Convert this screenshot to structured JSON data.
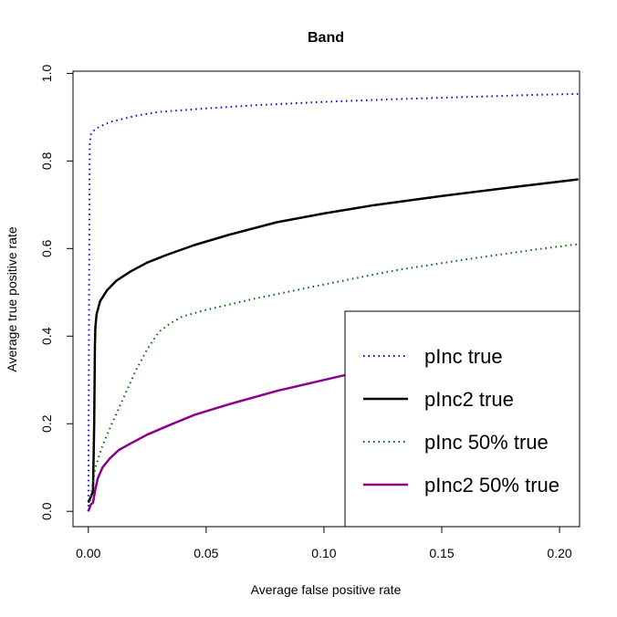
{
  "chart_data": {
    "type": "line",
    "title": "Band",
    "xlabel": "Average false positive rate",
    "ylabel": "Average true positive rate",
    "xlim": [
      -0.0065,
      0.2085
    ],
    "ylim": [
      -0.035,
      1.005
    ],
    "xticks": [
      0.0,
      0.05,
      0.1,
      0.15,
      0.2
    ],
    "xtick_labels": [
      "0.00",
      "0.05",
      "0.10",
      "0.15",
      "0.20"
    ],
    "yticks": [
      0.0,
      0.2,
      0.4,
      0.6,
      0.8,
      1.0
    ],
    "ytick_labels": [
      "0.0",
      "0.2",
      "0.4",
      "0.6",
      "0.8",
      "1.0"
    ],
    "grid": false,
    "legend_position": "bottom-right",
    "series": [
      {
        "name": "pInc true",
        "color": "#0000ff",
        "dash": "dotted",
        "x": [
          0.0,
          0.0003,
          0.0006,
          0.001,
          0.002,
          0.004,
          0.007,
          0.01,
          0.02,
          0.03,
          0.05,
          0.07,
          0.1,
          0.13,
          0.16,
          0.19,
          0.208
        ],
        "y": [
          0.0,
          0.5,
          0.84,
          0.86,
          0.868,
          0.876,
          0.884,
          0.89,
          0.903,
          0.912,
          0.92,
          0.927,
          0.935,
          0.941,
          0.946,
          0.951,
          0.953
        ]
      },
      {
        "name": "pInc2 true",
        "color": "#000000",
        "dash": "solid",
        "x": [
          0.0,
          0.002,
          0.0025,
          0.0028,
          0.003,
          0.0035,
          0.005,
          0.008,
          0.012,
          0.018,
          0.025,
          0.033,
          0.045,
          0.06,
          0.08,
          0.1,
          0.12,
          0.15,
          0.18,
          0.208
        ],
        "y": [
          0.02,
          0.045,
          0.2,
          0.38,
          0.42,
          0.45,
          0.48,
          0.505,
          0.527,
          0.548,
          0.568,
          0.585,
          0.608,
          0.632,
          0.66,
          0.68,
          0.698,
          0.72,
          0.74,
          0.758
        ]
      },
      {
        "name": "pInc 50% true",
        "color": "#006400",
        "dash": "dotted",
        "x": [
          0.0,
          0.003,
          0.006,
          0.01,
          0.015,
          0.02,
          0.025,
          0.03,
          0.035,
          0.04,
          0.05,
          0.07,
          0.1,
          0.13,
          0.16,
          0.19,
          0.208
        ],
        "y": [
          0.0,
          0.1,
          0.15,
          0.2,
          0.26,
          0.32,
          0.37,
          0.41,
          0.43,
          0.445,
          0.46,
          0.485,
          0.518,
          0.55,
          0.575,
          0.598,
          0.61
        ]
      },
      {
        "name": "pInc2 50% true",
        "color": "#8b008b",
        "dash": "solid",
        "x": [
          0.0,
          0.001,
          0.002,
          0.003,
          0.004,
          0.006,
          0.009,
          0.013,
          0.018,
          0.025,
          0.035,
          0.045,
          0.06,
          0.08,
          0.1,
          0.12
        ],
        "y": [
          0.0,
          0.015,
          0.02,
          0.05,
          0.075,
          0.1,
          0.12,
          0.14,
          0.155,
          0.175,
          0.198,
          0.22,
          0.245,
          0.275,
          0.3,
          0.325
        ]
      }
    ]
  }
}
